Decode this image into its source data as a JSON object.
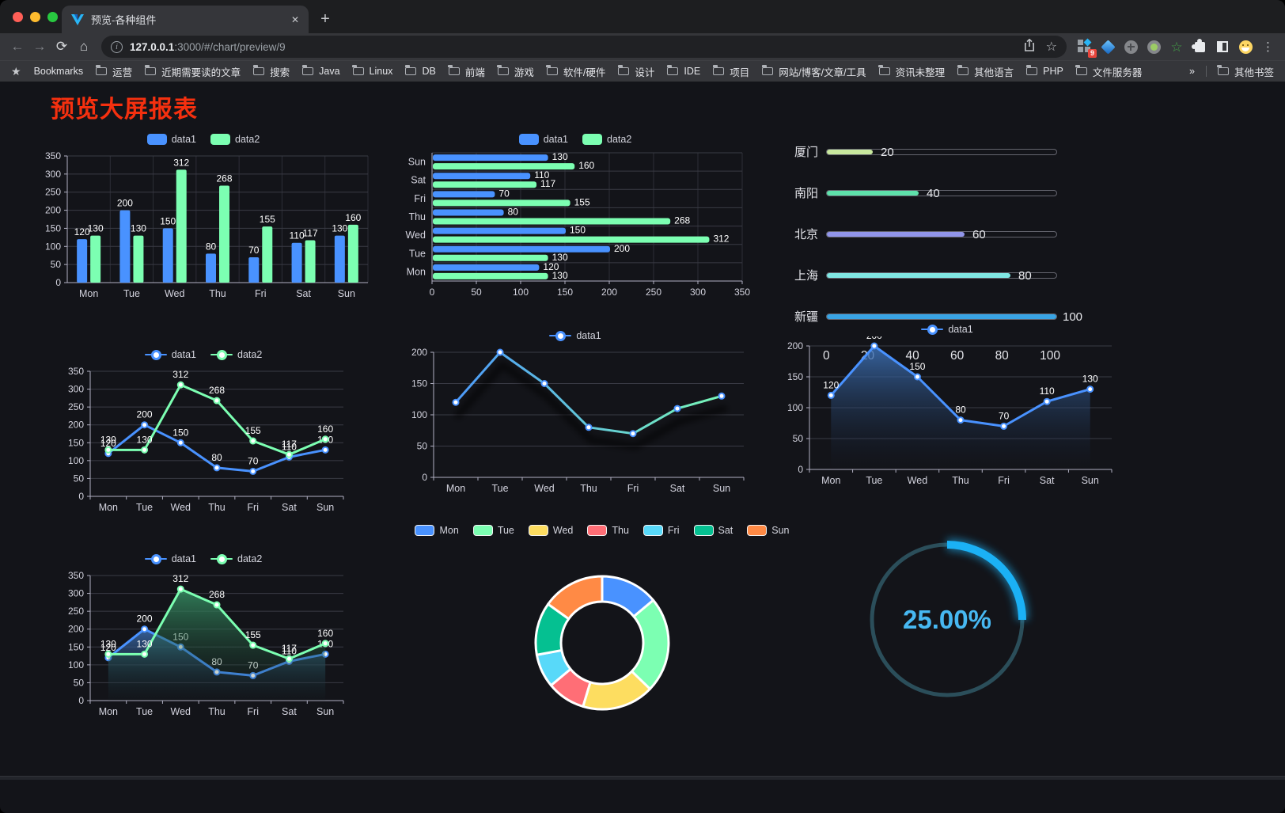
{
  "browser": {
    "traffic_lights": {
      "close": "#ff5f57",
      "minimize": "#febc2e",
      "zoom": "#28c840"
    },
    "tab": {
      "title": "预览-各种组件",
      "close_glyph": "✕",
      "new_tab_glyph": "+"
    },
    "nav_icons": {
      "back": "←",
      "forward": "→",
      "reload": "⟳",
      "home": "⌂"
    },
    "url": {
      "host": "127.0.0.1",
      "rest": ":3000/#/chart/preview/9"
    },
    "omnibox_icons": {
      "star": "☆"
    },
    "extensions_badge": "9",
    "menu_glyph": "⋮",
    "bookmarks": {
      "star_glyph": "★",
      "label": "Bookmarks",
      "items": [
        "运营",
        "近期需要读的文章",
        "搜索",
        "Java",
        "Linux",
        "DB",
        "前端",
        "游戏",
        "软件/硬件",
        "设计",
        "IDE",
        "项目",
        "网站/博客/文章/工具",
        "资讯未整理",
        "其他语言",
        "PHP",
        "文件服务器"
      ],
      "overflow_glyph": "»",
      "other_label": "其他书签"
    }
  },
  "page": {
    "title": "预览大屏报表",
    "title_color": "#f5300f"
  },
  "chart_data": [
    {
      "id": "grouped-bar",
      "type": "bar",
      "orientation": "vertical",
      "categories": [
        "Mon",
        "Tue",
        "Wed",
        "Thu",
        "Fri",
        "Sat",
        "Sun"
      ],
      "series": [
        {
          "name": "data1",
          "color": "#4992ff",
          "values": [
            120,
            200,
            150,
            80,
            70,
            110,
            130
          ]
        },
        {
          "name": "data2",
          "color": "#7cffb2",
          "values": [
            130,
            130,
            312,
            268,
            155,
            117,
            160
          ]
        }
      ],
      "ylim": [
        0,
        350
      ],
      "ystep": 50,
      "value_labels": true,
      "grid": true,
      "legend_position": "top"
    },
    {
      "id": "grouped-bar-horizontal",
      "type": "bar",
      "orientation": "horizontal",
      "categories": [
        "Mon",
        "Tue",
        "Wed",
        "Thu",
        "Fri",
        "Sat",
        "Sun"
      ],
      "series": [
        {
          "name": "data1",
          "color": "#4992ff",
          "values": [
            120,
            200,
            150,
            80,
            70,
            110,
            130
          ]
        },
        {
          "name": "data2",
          "color": "#7cffb2",
          "values": [
            130,
            130,
            312,
            268,
            155,
            117,
            160
          ]
        }
      ],
      "xlim": [
        0,
        350
      ],
      "xstep": 50,
      "value_labels": true,
      "grid": true,
      "legend_position": "top"
    },
    {
      "id": "city-progress",
      "type": "bar",
      "subtype": "progress-list",
      "items": [
        {
          "label": "厦门",
          "value": 20,
          "color": "#c8e89e"
        },
        {
          "label": "南阳",
          "value": 40,
          "color": "#5ee2ab"
        },
        {
          "label": "北京",
          "value": 60,
          "color": "#9195ea"
        },
        {
          "label": "上海",
          "value": 80,
          "color": "#80e7e3"
        },
        {
          "label": "新疆",
          "value": 100,
          "color": "#39a4e4"
        }
      ],
      "xlim": [
        0,
        100
      ],
      "xticks": [
        0,
        20,
        40,
        60,
        80,
        100
      ]
    },
    {
      "id": "line-two-series",
      "type": "line",
      "categories": [
        "Mon",
        "Tue",
        "Wed",
        "Thu",
        "Fri",
        "Sat",
        "Sun"
      ],
      "series": [
        {
          "name": "data1",
          "color": "#4992ff",
          "values": [
            120,
            200,
            150,
            80,
            70,
            110,
            130
          ]
        },
        {
          "name": "data2",
          "color": "#7cffb2",
          "values": [
            130,
            130,
            312,
            268,
            155,
            117,
            160
          ]
        }
      ],
      "ylim": [
        0,
        350
      ],
      "ystep": 50,
      "value_labels": true
    },
    {
      "id": "line-gradient",
      "type": "line",
      "categories": [
        "Mon",
        "Tue",
        "Wed",
        "Thu",
        "Fri",
        "Sat",
        "Sun"
      ],
      "series": [
        {
          "name": "data1",
          "color": "#4992ff",
          "gradient": [
            "#4992ff",
            "#7cffb2"
          ],
          "shadow": true,
          "values": [
            120,
            200,
            150,
            80,
            70,
            110,
            130
          ]
        }
      ],
      "ylim": [
        0,
        200
      ],
      "ystep": 50,
      "value_labels": false
    },
    {
      "id": "line-area",
      "type": "line",
      "categories": [
        "Mon",
        "Tue",
        "Wed",
        "Thu",
        "Fri",
        "Sat",
        "Sun"
      ],
      "series": [
        {
          "name": "data1",
          "color": "#4992ff",
          "area": [
            "rgba(62,115,185,0.85)",
            "rgba(20,30,48,0.04)"
          ],
          "values": [
            120,
            200,
            150,
            80,
            70,
            110,
            130
          ]
        }
      ],
      "ylim": [
        0,
        200
      ],
      "ystep": 50,
      "value_labels": true
    },
    {
      "id": "line-two-area",
      "type": "line",
      "categories": [
        "Mon",
        "Tue",
        "Wed",
        "Thu",
        "Fri",
        "Sat",
        "Sun"
      ],
      "series": [
        {
          "name": "data1",
          "color": "#4992ff",
          "area": [
            "rgba(62,115,185,0.8)",
            "rgba(20,30,48,0.05)"
          ],
          "values": [
            120,
            200,
            150,
            80,
            70,
            110,
            130
          ]
        },
        {
          "name": "data2",
          "color": "#7cffb2",
          "area": [
            "rgba(56,150,104,0.8)",
            "rgba(20,42,32,0.05)"
          ],
          "values": [
            130,
            130,
            312,
            268,
            155,
            117,
            160
          ]
        }
      ],
      "ylim": [
        0,
        350
      ],
      "ystep": 50,
      "value_labels": true
    },
    {
      "id": "donut",
      "type": "pie",
      "inner_radius_ratio": 0.62,
      "categories": [
        "Mon",
        "Tue",
        "Wed",
        "Thu",
        "Fri",
        "Sat",
        "Sun"
      ],
      "values": [
        120,
        200,
        150,
        80,
        70,
        110,
        130
      ],
      "colors": [
        "#4992ff",
        "#7cffb2",
        "#fddd60",
        "#ff6e76",
        "#58d9f9",
        "#05c091",
        "#ff8a45"
      ],
      "border_color": "#ffffff",
      "legend_position": "top"
    },
    {
      "id": "ring-gauge",
      "type": "gauge",
      "value": 25,
      "label": "25.00%",
      "color": "#1bb1f5",
      "track_color": "#2b4e5a",
      "text_color": "#47b8f2"
    }
  ]
}
